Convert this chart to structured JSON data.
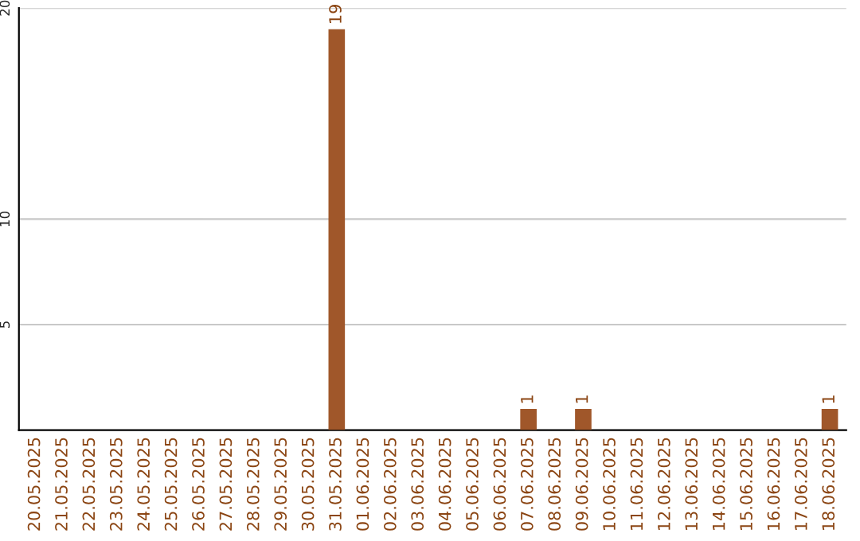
{
  "chart_data": {
    "type": "bar",
    "categories": [
      "20.05.2025",
      "21.05.2025",
      "22.05.2025",
      "23.05.2025",
      "24.05.2025",
      "25.05.2025",
      "26.05.2025",
      "27.05.2025",
      "28.05.2025",
      "29.05.2025",
      "30.05.2025",
      "31.05.2025",
      "01.06.2025",
      "02.06.2025",
      "03.06.2025",
      "04.06.2025",
      "05.06.2025",
      "06.06.2025",
      "07.06.2025",
      "08.06.2025",
      "09.06.2025",
      "10.06.2025",
      "11.06.2025",
      "12.06.2025",
      "13.06.2025",
      "14.06.2025",
      "15.06.2025",
      "16.06.2025",
      "17.06.2025",
      "18.06.2025"
    ],
    "values": [
      0,
      0,
      0,
      0,
      0,
      0,
      0,
      0,
      0,
      0,
      0,
      19,
      0,
      0,
      0,
      0,
      0,
      0,
      1,
      0,
      1,
      0,
      0,
      0,
      0,
      0,
      0,
      0,
      0,
      1
    ],
    "value_labels": [
      null,
      null,
      null,
      null,
      null,
      null,
      null,
      null,
      null,
      null,
      null,
      "19",
      null,
      null,
      null,
      null,
      null,
      null,
      "1",
      null,
      "1",
      null,
      null,
      null,
      null,
      null,
      null,
      null,
      null,
      "1"
    ],
    "color": "#a0572a",
    "ylim": [
      0,
      20
    ],
    "yticks": [
      5,
      10,
      20
    ],
    "grid": "y"
  }
}
